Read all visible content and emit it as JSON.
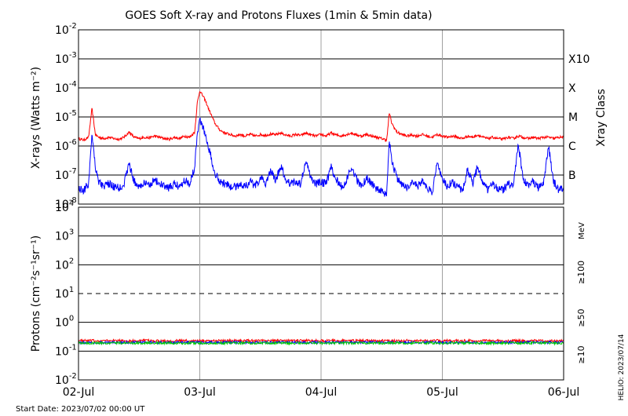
{
  "title": "GOES Soft X-ray and Protons Fluxes   (1min & 5min data)",
  "start_date_label": "Start Date: 2023/07/02 00:00 UT",
  "helio_stamp": "HELIO: 2023/07/14",
  "colors": {
    "xray_long": "#ff0000",
    "xray_short": "#0000ff",
    "proton_10": "#ff0000",
    "proton_50": "#0000ff",
    "proton_100": "#00cc00",
    "grid": "#000000",
    "day_lines": "#a0a0a0"
  },
  "chart_data": [
    {
      "type": "line",
      "panel": "xray",
      "ylabel": "X-rays (Watts m⁻²)",
      "yscale": "log",
      "ylim": [
        1e-08,
        0.01
      ],
      "y_ticks": [
        {
          "base": "10",
          "exp": "-2"
        },
        {
          "base": "10",
          "exp": "-3"
        },
        {
          "base": "10",
          "exp": "-4"
        },
        {
          "base": "10",
          "exp": "-5"
        },
        {
          "base": "10",
          "exp": "-6"
        },
        {
          "base": "10",
          "exp": "-7"
        },
        {
          "base": "10",
          "exp": "-8"
        }
      ],
      "right_axis_label": "Xray Class",
      "class_labels": [
        {
          "label": "X10",
          "value": 0.001
        },
        {
          "label": "X",
          "value": 0.0001
        },
        {
          "label": "M",
          "value": 1e-05
        },
        {
          "label": "C",
          "value": 1e-06
        },
        {
          "label": "B",
          "value": 1e-07
        }
      ],
      "xlim": [
        "2023-07-02",
        "2023-07-06"
      ],
      "series": [
        {
          "color": "#ff0000",
          "points": [
            [
              "2023-07-02 00:00",
              1.8e-06
            ],
            [
              "2023-07-02 01:00",
              1.6e-06
            ],
            [
              "2023-07-02 02:00",
              2e-06
            ],
            [
              "2023-07-02 02:40",
              2e-05
            ],
            [
              "2023-07-02 03:20",
              2.5e-06
            ],
            [
              "2023-07-02 04:00",
              2e-06
            ],
            [
              "2023-07-02 05:00",
              1.8e-06
            ],
            [
              "2023-07-02 06:00",
              2e-06
            ],
            [
              "2023-07-02 07:00",
              1.8e-06
            ],
            [
              "2023-07-02 08:00",
              1.7e-06
            ],
            [
              "2023-07-02 09:00",
              2e-06
            ],
            [
              "2023-07-02 10:00",
              3e-06
            ],
            [
              "2023-07-02 11:00",
              2e-06
            ],
            [
              "2023-07-02 12:00",
              1.8e-06
            ],
            [
              "2023-07-02 13:00",
              2e-06
            ],
            [
              "2023-07-02 14:00",
              1.9e-06
            ],
            [
              "2023-07-02 15:00",
              2.2e-06
            ],
            [
              "2023-07-02 16:00",
              2e-06
            ],
            [
              "2023-07-02 17:00",
              1.8e-06
            ],
            [
              "2023-07-02 18:00",
              1.7e-06
            ],
            [
              "2023-07-02 19:00",
              2e-06
            ],
            [
              "2023-07-02 20:00",
              1.8e-06
            ],
            [
              "2023-07-02 21:00",
              2.2e-06
            ],
            [
              "2023-07-02 22:00",
              2e-06
            ],
            [
              "2023-07-02 23:00",
              3e-06
            ],
            [
              "2023-07-02 23:30",
              3e-05
            ],
            [
              "2023-07-03 00:00",
              8e-05
            ],
            [
              "2023-07-03 01:00",
              4e-05
            ],
            [
              "2023-07-03 02:00",
              1.5e-05
            ],
            [
              "2023-07-03 03:00",
              6e-06
            ],
            [
              "2023-07-03 04:00",
              3.5e-06
            ],
            [
              "2023-07-03 05:00",
              2.8e-06
            ],
            [
              "2023-07-03 06:00",
              2.5e-06
            ],
            [
              "2023-07-03 07:00",
              2.2e-06
            ],
            [
              "2023-07-03 08:00",
              2.5e-06
            ],
            [
              "2023-07-03 09:00",
              2.2e-06
            ],
            [
              "2023-07-03 10:00",
              2.5e-06
            ],
            [
              "2023-07-03 11:00",
              2.2e-06
            ],
            [
              "2023-07-03 12:00",
              2.5e-06
            ],
            [
              "2023-07-03 13:00",
              2.3e-06
            ],
            [
              "2023-07-03 14:00",
              2.6e-06
            ],
            [
              "2023-07-03 15:00",
              2.4e-06
            ],
            [
              "2023-07-03 16:00",
              2.8e-06
            ],
            [
              "2023-07-03 17:00",
              2.4e-06
            ],
            [
              "2023-07-03 18:00",
              2.2e-06
            ],
            [
              "2023-07-03 19:00",
              2.5e-06
            ],
            [
              "2023-07-03 20:00",
              2.3e-06
            ],
            [
              "2023-07-03 21:00",
              2.8e-06
            ],
            [
              "2023-07-03 22:00",
              2.4e-06
            ],
            [
              "2023-07-03 23:00",
              2.2e-06
            ],
            [
              "2023-07-04 00:00",
              2.5e-06
            ],
            [
              "2023-07-04 01:00",
              2.2e-06
            ],
            [
              "2023-07-04 02:00",
              2.8e-06
            ],
            [
              "2023-07-04 03:00",
              2.4e-06
            ],
            [
              "2023-07-04 04:00",
              2.2e-06
            ],
            [
              "2023-07-04 05:00",
              2.5e-06
            ],
            [
              "2023-07-04 06:00",
              2.8e-06
            ],
            [
              "2023-07-04 07:00",
              2.4e-06
            ],
            [
              "2023-07-04 08:00",
              2.2e-06
            ],
            [
              "2023-07-04 09:00",
              2.5e-06
            ],
            [
              "2023-07-04 10:00",
              2.2e-06
            ],
            [
              "2023-07-04 11:00",
              2e-06
            ],
            [
              "2023-07-04 12:00",
              1.8e-06
            ],
            [
              "2023-07-04 13:00",
              1.6e-06
            ],
            [
              "2023-07-04 13:30",
              1.4e-05
            ],
            [
              "2023-07-04 14:00",
              6e-06
            ],
            [
              "2023-07-04 15:00",
              3e-06
            ],
            [
              "2023-07-04 16:00",
              2.5e-06
            ],
            [
              "2023-07-04 17:00",
              2.2e-06
            ],
            [
              "2023-07-04 18:00",
              2.4e-06
            ],
            [
              "2023-07-04 19:00",
              2.2e-06
            ],
            [
              "2023-07-04 20:00",
              2.5e-06
            ],
            [
              "2023-07-04 21:00",
              2.2e-06
            ],
            [
              "2023-07-04 22:00",
              2e-06
            ],
            [
              "2023-07-04 23:00",
              2.5e-06
            ],
            [
              "2023-07-05 00:00",
              2.2e-06
            ],
            [
              "2023-07-05 01:00",
              2e-06
            ],
            [
              "2023-07-05 02:00",
              2.2e-06
            ],
            [
              "2023-07-05 03:00",
              2e-06
            ],
            [
              "2023-07-05 04:00",
              1.8e-06
            ],
            [
              "2023-07-05 05:00",
              2.2e-06
            ],
            [
              "2023-07-05 06:00",
              2e-06
            ],
            [
              "2023-07-05 07:00",
              2.4e-06
            ],
            [
              "2023-07-05 08:00",
              2e-06
            ],
            [
              "2023-07-05 09:00",
              1.8e-06
            ],
            [
              "2023-07-05 10:00",
              2e-06
            ],
            [
              "2023-07-05 11:00",
              1.8e-06
            ],
            [
              "2023-07-05 12:00",
              1.7e-06
            ],
            [
              "2023-07-05 13:00",
              2e-06
            ],
            [
              "2023-07-05 14:00",
              1.8e-06
            ],
            [
              "2023-07-05 15:00",
              2.2e-06
            ],
            [
              "2023-07-05 16:00",
              2e-06
            ],
            [
              "2023-07-05 17:00",
              1.8e-06
            ],
            [
              "2023-07-05 18:00",
              2e-06
            ],
            [
              "2023-07-05 19:00",
              1.8e-06
            ],
            [
              "2023-07-05 20:00",
              2e-06
            ],
            [
              "2023-07-05 21:00",
              2e-06
            ],
            [
              "2023-07-05 22:00",
              1.8e-06
            ],
            [
              "2023-07-05 23:00",
              2e-06
            ],
            [
              "2023-07-06 00:00",
              2e-06
            ]
          ]
        },
        {
          "color": "#0000ff",
          "points": [
            [
              "2023-07-02 00:00",
              3.5e-08
            ],
            [
              "2023-07-02 01:00",
              3e-08
            ],
            [
              "2023-07-02 02:00",
              5e-08
            ],
            [
              "2023-07-02 02:40",
              3e-06
            ],
            [
              "2023-07-02 03:20",
              2e-07
            ],
            [
              "2023-07-02 04:00",
              6e-08
            ],
            [
              "2023-07-02 05:00",
              4e-08
            ],
            [
              "2023-07-02 06:00",
              5e-08
            ],
            [
              "2023-07-02 07:00",
              4e-08
            ],
            [
              "2023-07-02 08:00",
              3.5e-08
            ],
            [
              "2023-07-02 09:00",
              5e-08
            ],
            [
              "2023-07-02 10:00",
              2.5e-07
            ],
            [
              "2023-07-02 11:00",
              6e-08
            ],
            [
              "2023-07-02 12:00",
              4e-08
            ],
            [
              "2023-07-02 13:00",
              5e-08
            ],
            [
              "2023-07-02 14:00",
              4.5e-08
            ],
            [
              "2023-07-02 15:00",
              7e-08
            ],
            [
              "2023-07-02 16:00",
              5e-08
            ],
            [
              "2023-07-02 17:00",
              4e-08
            ],
            [
              "2023-07-02 18:00",
              3.5e-08
            ],
            [
              "2023-07-02 19:00",
              5e-08
            ],
            [
              "2023-07-02 20:00",
              4e-08
            ],
            [
              "2023-07-02 21:00",
              7e-08
            ],
            [
              "2023-07-02 22:00",
              5e-08
            ],
            [
              "2023-07-02 23:00",
              2e-07
            ],
            [
              "2023-07-02 23:30",
              3e-06
            ],
            [
              "2023-07-03 00:00",
              8e-06
            ],
            [
              "2023-07-03 01:00",
              3e-06
            ],
            [
              "2023-07-03 02:00",
              6e-07
            ],
            [
              "2023-07-03 03:00",
              1.2e-07
            ],
            [
              "2023-07-03 04:00",
              6e-08
            ],
            [
              "2023-07-03 05:00",
              5e-08
            ],
            [
              "2023-07-03 06:00",
              4e-08
            ],
            [
              "2023-07-03 07:00",
              4e-08
            ],
            [
              "2023-07-03 08:00",
              5e-08
            ],
            [
              "2023-07-03 09:00",
              4e-08
            ],
            [
              "2023-07-03 10:00",
              6e-08
            ],
            [
              "2023-07-03 11:00",
              4e-08
            ],
            [
              "2023-07-03 12:00",
              8e-08
            ],
            [
              "2023-07-03 13:00",
              5e-08
            ],
            [
              "2023-07-03 14:00",
              1.5e-07
            ],
            [
              "2023-07-03 15:00",
              6e-08
            ],
            [
              "2023-07-03 16:00",
              2e-07
            ],
            [
              "2023-07-03 17:00",
              7e-08
            ],
            [
              "2023-07-03 18:00",
              5e-08
            ],
            [
              "2023-07-03 19:00",
              6e-08
            ],
            [
              "2023-07-03 20:00",
              5e-08
            ],
            [
              "2023-07-03 21:00",
              3e-07
            ],
            [
              "2023-07-03 22:00",
              8e-08
            ],
            [
              "2023-07-03 23:00",
              5e-08
            ],
            [
              "2023-07-04 00:00",
              6e-08
            ],
            [
              "2023-07-04 01:00",
              5e-08
            ],
            [
              "2023-07-04 02:00",
              1.8e-07
            ],
            [
              "2023-07-04 03:00",
              7e-08
            ],
            [
              "2023-07-04 04:00",
              4e-08
            ],
            [
              "2023-07-04 05:00",
              6e-08
            ],
            [
              "2023-07-04 06:00",
              2e-07
            ],
            [
              "2023-07-04 07:00",
              7e-08
            ],
            [
              "2023-07-04 08:00",
              4e-08
            ],
            [
              "2023-07-04 09:00",
              8e-08
            ],
            [
              "2023-07-04 10:00",
              5e-08
            ],
            [
              "2023-07-04 11:00",
              3.5e-08
            ],
            [
              "2023-07-04 12:00",
              2.5e-08
            ],
            [
              "2023-07-04 13:00",
              2e-08
            ],
            [
              "2023-07-04 13:30",
              1.5e-06
            ],
            [
              "2023-07-04 14:00",
              3e-07
            ],
            [
              "2023-07-04 15:00",
              8e-08
            ],
            [
              "2023-07-04 16:00",
              5e-08
            ],
            [
              "2023-07-04 17:00",
              3.5e-08
            ],
            [
              "2023-07-04 18:00",
              6e-08
            ],
            [
              "2023-07-04 19:00",
              4e-08
            ],
            [
              "2023-07-04 20:00",
              6e-08
            ],
            [
              "2023-07-04 21:00",
              3.5e-08
            ],
            [
              "2023-07-04 22:00",
              2.5e-08
            ],
            [
              "2023-07-04 23:00",
              3e-07
            ],
            [
              "2023-07-05 00:00",
              7e-08
            ],
            [
              "2023-07-05 01:00",
              4e-08
            ],
            [
              "2023-07-05 02:00",
              6e-08
            ],
            [
              "2023-07-05 03:00",
              4e-08
            ],
            [
              "2023-07-05 04:00",
              3e-08
            ],
            [
              "2023-07-05 05:00",
              1.5e-07
            ],
            [
              "2023-07-05 06:00",
              5e-08
            ],
            [
              "2023-07-05 07:00",
              2e-07
            ],
            [
              "2023-07-05 08:00",
              6e-08
            ],
            [
              "2023-07-05 09:00",
              3e-08
            ],
            [
              "2023-07-05 10:00",
              5e-08
            ],
            [
              "2023-07-05 11:00",
              3.5e-08
            ],
            [
              "2023-07-05 12:00",
              3e-08
            ],
            [
              "2023-07-05 13:00",
              5e-08
            ],
            [
              "2023-07-05 14:00",
              3.5e-08
            ],
            [
              "2023-07-05 15:00",
              1.2e-06
            ],
            [
              "2023-07-05 16:00",
              8e-08
            ],
            [
              "2023-07-05 17:00",
              4e-08
            ],
            [
              "2023-07-05 18:00",
              6e-08
            ],
            [
              "2023-07-05 19:00",
              3.5e-08
            ],
            [
              "2023-07-05 20:00",
              5e-08
            ],
            [
              "2023-07-05 21:00",
              1e-06
            ],
            [
              "2023-07-05 22:00",
              6e-08
            ],
            [
              "2023-07-05 23:00",
              3e-08
            ],
            [
              "2023-07-06 00:00",
              3.5e-08
            ]
          ]
        }
      ]
    },
    {
      "type": "line",
      "panel": "protons",
      "ylabel": "Protons (cm⁻²s⁻¹sr⁻¹)",
      "yscale": "log",
      "ylim": [
        0.01,
        10000
      ],
      "y_ticks": [
        {
          "base": "10",
          "exp": "4"
        },
        {
          "base": "10",
          "exp": "3"
        },
        {
          "base": "10",
          "exp": "2"
        },
        {
          "base": "10",
          "exp": "1"
        },
        {
          "base": "10",
          "exp": "0"
        },
        {
          "base": "10",
          "exp": "-1"
        },
        {
          "base": "10",
          "exp": "-2"
        }
      ],
      "threshold_dashed": 10,
      "right_axis_unit": "MeV",
      "legend": [
        {
          "name": "≥100",
          "color": "#00cc00"
        },
        {
          "name": "≥50",
          "color": "#0000ff"
        },
        {
          "name": "≥10",
          "color": "#ff0000"
        }
      ],
      "xlim": [
        "2023-07-02",
        "2023-07-06"
      ],
      "series": [
        {
          "name": "≥10",
          "color": "#ff0000",
          "level": 0.23
        },
        {
          "name": "≥50",
          "color": "#0000ff",
          "level": 0.2
        },
        {
          "name": "≥100",
          "color": "#00cc00",
          "level": 0.19
        }
      ]
    }
  ],
  "x_ticks": [
    "02-Jul",
    "03-Jul",
    "04-Jul",
    "05-Jul",
    "06-Jul"
  ]
}
